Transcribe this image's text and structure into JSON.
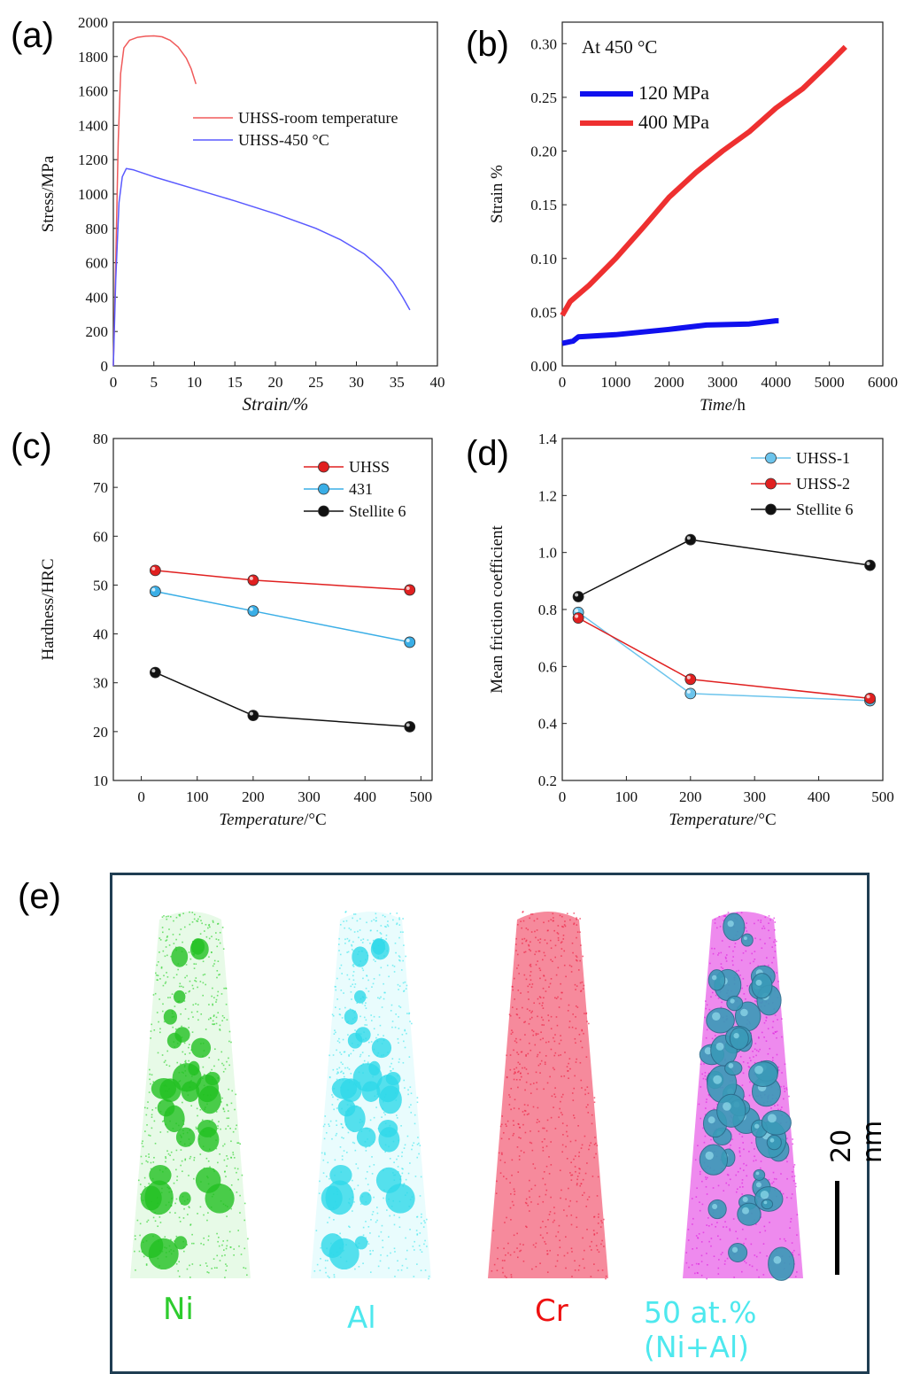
{
  "panels": {
    "a": "(a)",
    "b": "(b)",
    "c": "(c)",
    "d": "(d)",
    "e": "(e)"
  },
  "chart_data": [
    {
      "id": "a",
      "type": "line",
      "xlabel": "Strain/%",
      "ylabel": "Stress/MPa",
      "xlim": [
        0,
        40
      ],
      "ylim": [
        0,
        2000
      ],
      "xticks": [
        0,
        5,
        10,
        15,
        20,
        25,
        30,
        35,
        40
      ],
      "yticks": [
        0,
        200,
        400,
        600,
        800,
        1000,
        1200,
        1400,
        1600,
        1800,
        2000
      ],
      "legend_position": "upper-right",
      "series": [
        {
          "name": "UHSS-room temperature",
          "color": "#f05a5a",
          "points": [
            [
              0,
              0
            ],
            [
              0.3,
              600
            ],
            [
              0.6,
              1300
            ],
            [
              0.9,
              1700
            ],
            [
              1.3,
              1850
            ],
            [
              2,
              1895
            ],
            [
              3,
              1912
            ],
            [
              4,
              1918
            ],
            [
              5,
              1920
            ],
            [
              6,
              1915
            ],
            [
              7,
              1895
            ],
            [
              8,
              1855
            ],
            [
              9,
              1790
            ],
            [
              9.6,
              1730
            ],
            [
              10.2,
              1640
            ]
          ]
        },
        {
          "name": "UHSS-450 °C",
          "color": "#5a5aff",
          "points": [
            [
              0,
              0
            ],
            [
              0.3,
              500
            ],
            [
              0.7,
              950
            ],
            [
              1.1,
              1100
            ],
            [
              1.6,
              1148
            ],
            [
              2.5,
              1140
            ],
            [
              5,
              1100
            ],
            [
              10,
              1030
            ],
            [
              15,
              960
            ],
            [
              20,
              885
            ],
            [
              25,
              800
            ],
            [
              28,
              735
            ],
            [
              31,
              650
            ],
            [
              33,
              570
            ],
            [
              34.5,
              490
            ],
            [
              35.7,
              400
            ],
            [
              36.6,
              325
            ]
          ]
        }
      ]
    },
    {
      "id": "b",
      "type": "line",
      "annotation": "At 450 °C",
      "xlabel_italic": "Time",
      "xlabel_unit": "/h",
      "ylabel": "Strain %",
      "xlim": [
        0,
        6000
      ],
      "ylim": [
        0,
        0.32
      ],
      "xticks": [
        0,
        1000,
        2000,
        3000,
        4000,
        5000,
        6000
      ],
      "yticks": [
        "0.00",
        "0.05",
        "0.10",
        "0.15",
        "0.20",
        "0.25",
        "0.30"
      ],
      "legend_position": "upper-left",
      "series": [
        {
          "name": "120 MPa",
          "color": "#1010ee",
          "points": [
            [
              0,
              0.021
            ],
            [
              200,
              0.023
            ],
            [
              300,
              0.027
            ],
            [
              1000,
              0.029
            ],
            [
              2000,
              0.034
            ],
            [
              2700,
              0.038
            ],
            [
              3500,
              0.039
            ],
            [
              4000,
              0.042
            ],
            [
              4050,
              0.042
            ]
          ]
        },
        {
          "name": "400 MPa",
          "color": "#ee3030",
          "points": [
            [
              0,
              0.047
            ],
            [
              150,
              0.06
            ],
            [
              500,
              0.075
            ],
            [
              1000,
              0.1
            ],
            [
              1500,
              0.128
            ],
            [
              2000,
              0.157
            ],
            [
              2500,
              0.18
            ],
            [
              3000,
              0.2
            ],
            [
              3500,
              0.218
            ],
            [
              4000,
              0.24
            ],
            [
              4500,
              0.258
            ],
            [
              5000,
              0.282
            ],
            [
              5300,
              0.297
            ]
          ]
        }
      ]
    },
    {
      "id": "c",
      "type": "line",
      "xlabel_italic": "Temperature",
      "xlabel_unit": "/°C",
      "ylabel": "Hardness/HRC",
      "xlim": [
        -50,
        520
      ],
      "ylim": [
        10,
        80
      ],
      "xticks": [
        0,
        100,
        200,
        300,
        400,
        500
      ],
      "yticks": [
        10,
        20,
        30,
        40,
        50,
        60,
        70,
        80
      ],
      "legend_position": "upper-right",
      "series": [
        {
          "name": "UHSS",
          "color": "#e02020",
          "points": [
            [
              25,
              53
            ],
            [
              200,
              51
            ],
            [
              480,
              49
            ]
          ]
        },
        {
          "name": "431",
          "color": "#3aaee6",
          "points": [
            [
              25,
              48.7
            ],
            [
              200,
              44.7
            ],
            [
              480,
              38.3
            ]
          ]
        },
        {
          "name": "Stellite 6",
          "color": "#111111",
          "points": [
            [
              25,
              32.1
            ],
            [
              200,
              23.3
            ],
            [
              480,
              21
            ]
          ]
        }
      ]
    },
    {
      "id": "d",
      "type": "line",
      "xlabel_italic": "Temperature",
      "xlabel_unit": "/°C",
      "ylabel": "Mean friction coefficient",
      "xlim": [
        0,
        500
      ],
      "ylim": [
        0.2,
        1.4
      ],
      "xticks": [
        0,
        100,
        200,
        300,
        400,
        500
      ],
      "yticks": [
        "0.2",
        "0.4",
        "0.6",
        "0.8",
        "1.0",
        "1.2",
        "1.4"
      ],
      "legend_position": "upper-right",
      "series": [
        {
          "name": "UHSS-1",
          "color": "#6cc4ec",
          "points": [
            [
              25,
              0.79
            ],
            [
              200,
              0.505
            ],
            [
              480,
              0.48
            ]
          ]
        },
        {
          "name": "UHSS-2",
          "color": "#e02020",
          "points": [
            [
              25,
              0.77
            ],
            [
              200,
              0.555
            ],
            [
              480,
              0.488
            ]
          ]
        },
        {
          "name": "Stellite 6",
          "color": "#111111",
          "points": [
            [
              25,
              0.845
            ],
            [
              200,
              1.045
            ],
            [
              480,
              0.955
            ]
          ]
        }
      ]
    }
  ],
  "eds": {
    "labels": [
      {
        "text": "Ni",
        "color": "#2ecc2e"
      },
      {
        "text": "Al",
        "color": "#4ee8ee"
      },
      {
        "text": "Cr",
        "color": "#ee1111"
      },
      {
        "text": "50 at.% (Ni+Al)",
        "color": "#4ee8ee"
      }
    ],
    "scale_bar": "20 nm"
  }
}
